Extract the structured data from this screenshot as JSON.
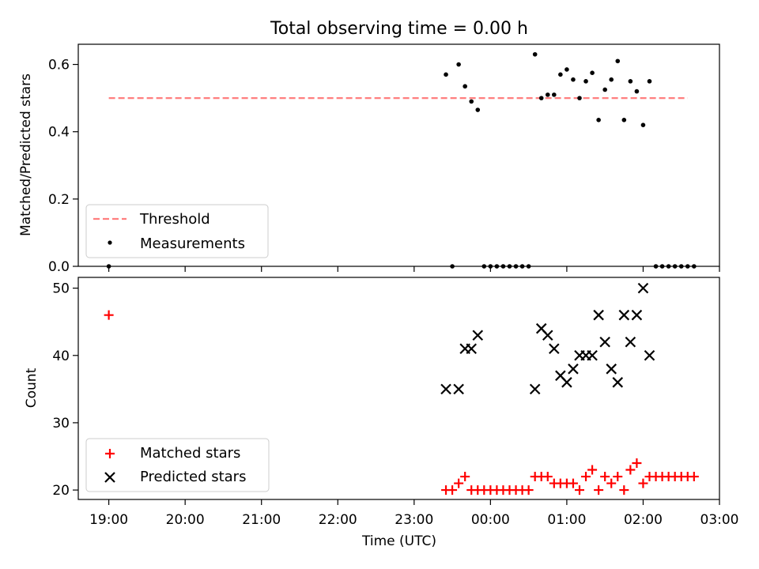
{
  "title": "Total observing time = 0.00 h",
  "colors": {
    "threshold": "#ff7f7f",
    "measurement": "#000000",
    "matched": "#ff0000",
    "predicted": "#000000"
  },
  "chart_data": [
    {
      "type": "scatter",
      "ylabel": "Matched/Predicted stars",
      "ylim": [
        0,
        0.66
      ],
      "yticks": [
        "0.0",
        "0.2",
        "0.4",
        "0.6"
      ],
      "legend": {
        "position": "lower-left",
        "entries": [
          "Threshold",
          "Measurements"
        ]
      },
      "threshold": {
        "name": "Threshold",
        "value": 0.5,
        "x_start": "19:00",
        "x_end": "02:35"
      },
      "series": [
        {
          "name": "Measurements",
          "points": [
            [
              "19:00",
              0.0
            ],
            [
              "23:30",
              0.0
            ],
            [
              "23:25",
              0.57
            ],
            [
              "23:35",
              0.6
            ],
            [
              "23:40",
              0.535
            ],
            [
              "23:45",
              0.49
            ],
            [
              "23:50",
              0.465
            ],
            [
              "23:55",
              0.0
            ],
            [
              "00:00",
              0.0
            ],
            [
              "00:05",
              0.0
            ],
            [
              "00:10",
              0.0
            ],
            [
              "00:15",
              0.0
            ],
            [
              "00:20",
              0.0
            ],
            [
              "00:25",
              0.0
            ],
            [
              "00:30",
              0.0
            ],
            [
              "00:35",
              0.63
            ],
            [
              "00:40",
              0.5
            ],
            [
              "00:45",
              0.51
            ],
            [
              "00:50",
              0.51
            ],
            [
              "00:55",
              0.57
            ],
            [
              "01:00",
              0.585
            ],
            [
              "01:05",
              0.555
            ],
            [
              "01:10",
              0.5
            ],
            [
              "01:15",
              0.55
            ],
            [
              "01:20",
              0.575
            ],
            [
              "01:25",
              0.435
            ],
            [
              "01:30",
              0.525
            ],
            [
              "01:35",
              0.555
            ],
            [
              "01:40",
              0.61
            ],
            [
              "01:45",
              0.435
            ],
            [
              "01:50",
              0.55
            ],
            [
              "01:55",
              0.52
            ],
            [
              "02:00",
              0.42
            ],
            [
              "02:05",
              0.55
            ],
            [
              "02:10",
              0.0
            ],
            [
              "02:15",
              0.0
            ],
            [
              "02:20",
              0.0
            ],
            [
              "02:25",
              0.0
            ],
            [
              "02:30",
              0.0
            ],
            [
              "02:35",
              0.0
            ],
            [
              "02:40",
              0.0
            ]
          ]
        }
      ]
    },
    {
      "type": "scatter",
      "xlabel": "Time (UTC)",
      "ylabel": "Count",
      "ylim": [
        18.6,
        51.6
      ],
      "yticks": [
        "20",
        "30",
        "40",
        "50"
      ],
      "xticks": [
        "19:00",
        "20:00",
        "21:00",
        "22:00",
        "23:00",
        "00:00",
        "01:00",
        "02:00",
        "03:00"
      ],
      "xlim": [
        "18:36",
        "03:00"
      ],
      "legend": {
        "position": "lower-left",
        "entries": [
          "Matched stars",
          "Predicted stars"
        ]
      },
      "series": [
        {
          "name": "Matched stars",
          "marker": "+",
          "points": [
            [
              "19:00",
              46
            ],
            [
              "23:25",
              20
            ],
            [
              "23:30",
              20
            ],
            [
              "23:35",
              21
            ],
            [
              "23:40",
              22
            ],
            [
              "23:45",
              20
            ],
            [
              "23:50",
              20
            ],
            [
              "23:55",
              20
            ],
            [
              "00:00",
              20
            ],
            [
              "00:05",
              20
            ],
            [
              "00:10",
              20
            ],
            [
              "00:15",
              20
            ],
            [
              "00:20",
              20
            ],
            [
              "00:25",
              20
            ],
            [
              "00:30",
              20
            ],
            [
              "00:35",
              22
            ],
            [
              "00:40",
              22
            ],
            [
              "00:45",
              22
            ],
            [
              "00:50",
              21
            ],
            [
              "00:55",
              21
            ],
            [
              "01:00",
              21
            ],
            [
              "01:05",
              21
            ],
            [
              "01:10",
              20
            ],
            [
              "01:15",
              22
            ],
            [
              "01:20",
              23
            ],
            [
              "01:25",
              20
            ],
            [
              "01:30",
              22
            ],
            [
              "01:35",
              21
            ],
            [
              "01:40",
              22
            ],
            [
              "01:45",
              20
            ],
            [
              "01:50",
              23
            ],
            [
              "01:55",
              24
            ],
            [
              "02:00",
              21
            ],
            [
              "02:05",
              22
            ],
            [
              "02:10",
              22
            ],
            [
              "02:15",
              22
            ],
            [
              "02:20",
              22
            ],
            [
              "02:25",
              22
            ],
            [
              "02:30",
              22
            ],
            [
              "02:35",
              22
            ],
            [
              "02:40",
              22
            ]
          ]
        },
        {
          "name": "Predicted stars",
          "marker": "x",
          "points": [
            [
              "23:25",
              35
            ],
            [
              "23:35",
              35
            ],
            [
              "23:40",
              41
            ],
            [
              "23:45",
              41
            ],
            [
              "23:50",
              43
            ],
            [
              "00:35",
              35
            ],
            [
              "00:40",
              44
            ],
            [
              "00:45",
              43
            ],
            [
              "00:50",
              41
            ],
            [
              "00:55",
              37
            ],
            [
              "01:00",
              36
            ],
            [
              "01:05",
              38
            ],
            [
              "01:10",
              40
            ],
            [
              "01:15",
              40
            ],
            [
              "01:20",
              40
            ],
            [
              "01:25",
              46
            ],
            [
              "01:30",
              42
            ],
            [
              "01:35",
              38
            ],
            [
              "01:40",
              36
            ],
            [
              "01:45",
              46
            ],
            [
              "01:50",
              42
            ],
            [
              "01:55",
              46
            ],
            [
              "02:00",
              50
            ],
            [
              "02:05",
              40
            ]
          ]
        }
      ]
    }
  ]
}
